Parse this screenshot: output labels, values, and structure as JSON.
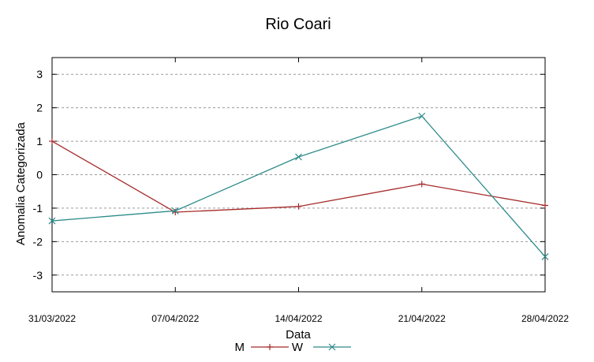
{
  "chart_data": {
    "type": "line",
    "title": "Rio Coari",
    "xlabel": "Data",
    "ylabel": "Anomalia Categorizada",
    "categories": [
      "31/03/2022",
      "07/04/2022",
      "14/04/2022",
      "21/04/2022",
      "28/04/2022"
    ],
    "ylim": [
      -3.5,
      3.5
    ],
    "yticks": [
      3,
      2,
      1,
      0,
      -1,
      -2,
      -3
    ],
    "ytick_labels": [
      "3",
      "2",
      "1",
      "0",
      "-1",
      "-2",
      "-3"
    ],
    "grid": true,
    "legend_position": "bottom",
    "series": [
      {
        "name": "M",
        "values": [
          1.0,
          -1.12,
          -0.95,
          -0.28,
          -0.92
        ],
        "color": "#a52a2a",
        "marker": "plus"
      },
      {
        "name": "W",
        "values": [
          -1.38,
          -1.08,
          0.53,
          1.75,
          -2.45
        ],
        "color": "#2e8b8b",
        "marker": "cross"
      }
    ]
  }
}
